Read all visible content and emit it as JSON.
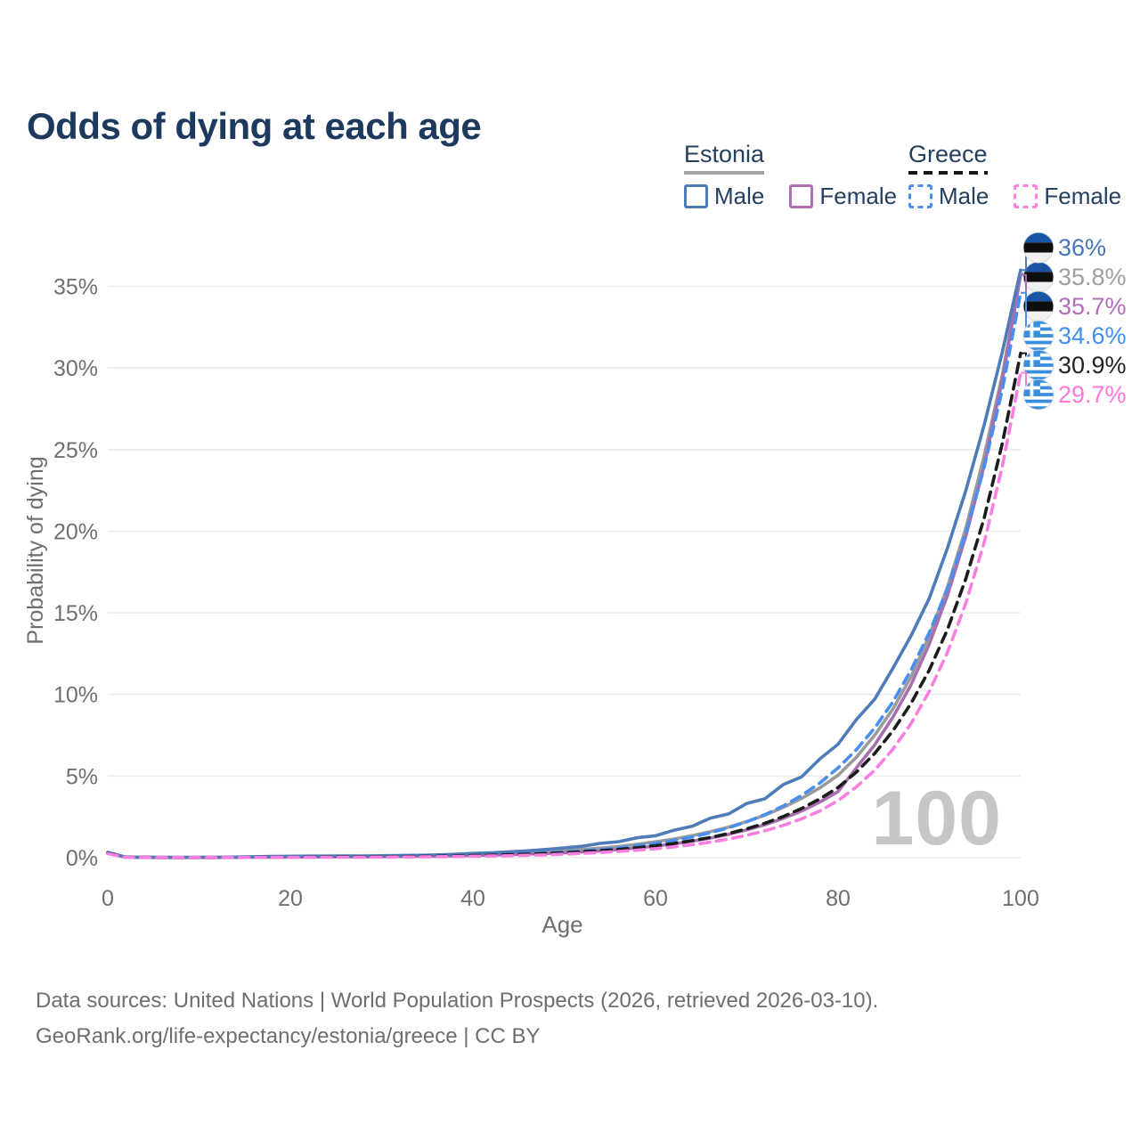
{
  "page": {
    "title": "Odds of dying at each age"
  },
  "legend": {
    "groups": [
      {
        "id": "estonia",
        "label": "Estonia",
        "line_style": "solid",
        "line_color": "#a3a3a3",
        "items": [
          {
            "label": "Male",
            "color": "#4d7cb8",
            "dash": false
          },
          {
            "label": "Female",
            "color": "#b06fb3",
            "dash": false
          }
        ]
      },
      {
        "id": "greece",
        "label": "Greece",
        "line_style": "dashed",
        "line_color": "#161616",
        "items": [
          {
            "label": "Male",
            "color": "#4a8ff0",
            "dash": true
          },
          {
            "label": "Female",
            "color": "#ff80df",
            "dash": true
          }
        ]
      }
    ]
  },
  "footer": {
    "line1": "Data sources: United Nations | World Population Prospects (2026, retrieved 2026-03-10).",
    "line2": "GeoRank.org/life-expectancy/estonia/greece | CC BY"
  },
  "colors": {
    "title": "#1d3a5e",
    "axis_text": "#6f6f6f",
    "grid": "#ebebeb",
    "watermark": "#c6c6c6"
  },
  "chart_data": {
    "type": "line",
    "title": "Odds of dying at each age",
    "xlabel": "Age",
    "ylabel": "Probability of dying",
    "x_ticks": [
      0,
      20,
      40,
      60,
      80,
      100
    ],
    "y_tick_values": [
      0,
      5,
      10,
      15,
      20,
      25,
      30,
      35
    ],
    "y_tick_labels": [
      "0%",
      "5%",
      "10%",
      "15%",
      "20%",
      "25%",
      "30%",
      "35%"
    ],
    "xlim": [
      0,
      100
    ],
    "ylim": [
      0,
      37
    ],
    "grid": "horizontal",
    "legend_position": "top-right",
    "age_counter": "100",
    "ages_start": 0,
    "ages_step": 2,
    "series": [
      {
        "id": "estonia-both",
        "country": "Estonia",
        "sex": "Both",
        "color": "#9a9a9a",
        "dash": false,
        "flag": "estonia",
        "end_label": "35.8%",
        "label_color": "#9e9e9e",
        "label_row": 1,
        "values": [
          0.31,
          0.025,
          0.02,
          0.015,
          0.015,
          0.015,
          0.02,
          0.025,
          0.04,
          0.06,
          0.07,
          0.075,
          0.08,
          0.08,
          0.085,
          0.09,
          0.1,
          0.11,
          0.13,
          0.15,
          0.18,
          0.21,
          0.25,
          0.3,
          0.35,
          0.42,
          0.5,
          0.59,
          0.69,
          0.82,
          0.97,
          1.14,
          1.35,
          1.59,
          1.87,
          2.21,
          2.61,
          3.08,
          3.63,
          4.28,
          5.05,
          6.15,
          7.5,
          9.1,
          11.1,
          13.6,
          16.6,
          20.2,
          24.6,
          29.6,
          35.8
        ]
      },
      {
        "id": "estonia-female",
        "country": "Estonia",
        "sex": "Female",
        "color": "#a86fb0",
        "dash": false,
        "flag": "estonia",
        "end_label": "35.7%",
        "label_color": "#b36cb8",
        "label_row": 2,
        "values": [
          0.3,
          0.02,
          0.015,
          0.01,
          0.01,
          0.01,
          0.015,
          0.02,
          0.025,
          0.03,
          0.035,
          0.04,
          0.045,
          0.05,
          0.055,
          0.06,
          0.07,
          0.08,
          0.09,
          0.11,
          0.13,
          0.155,
          0.185,
          0.22,
          0.26,
          0.3,
          0.36,
          0.42,
          0.5,
          0.6,
          0.71,
          0.85,
          1.01,
          1.2,
          1.43,
          1.7,
          2.02,
          2.41,
          2.86,
          3.41,
          4.05,
          5.5,
          6.9,
          8.6,
          10.6,
          13.1,
          16.1,
          19.7,
          24.0,
          29.3,
          35.7
        ]
      },
      {
        "id": "estonia-male",
        "country": "Estonia",
        "sex": "Male",
        "color": "#4d7cb8",
        "dash": false,
        "flag": "estonia",
        "end_label": "36%",
        "label_color": "#4677b8",
        "label_row": 0,
        "values": [
          0.33,
          0.03,
          0.02,
          0.02,
          0.02,
          0.02,
          0.03,
          0.04,
          0.06,
          0.08,
          0.09,
          0.1,
          0.1,
          0.11,
          0.11,
          0.12,
          0.13,
          0.15,
          0.17,
          0.21,
          0.26,
          0.3,
          0.36,
          0.42,
          0.5,
          0.6,
          0.7,
          0.88,
          0.98,
          1.22,
          1.34,
          1.68,
          1.92,
          2.42,
          2.68,
          3.32,
          3.62,
          4.48,
          4.95,
          6.05,
          6.95,
          8.45,
          9.7,
          11.6,
          13.6,
          15.9,
          19.0,
          22.5,
          26.5,
          31.0,
          36.0
        ]
      },
      {
        "id": "greece-male",
        "country": "Greece",
        "sex": "Male",
        "color": "#4a8ff0",
        "dash": true,
        "flag": "greece",
        "end_label": "34.6%",
        "label_color": "#4190f0",
        "label_row": 3,
        "values": [
          0.3,
          0.02,
          0.015,
          0.01,
          0.01,
          0.01,
          0.01,
          0.02,
          0.03,
          0.05,
          0.06,
          0.06,
          0.07,
          0.07,
          0.08,
          0.08,
          0.09,
          0.1,
          0.11,
          0.12,
          0.14,
          0.17,
          0.2,
          0.24,
          0.29,
          0.35,
          0.42,
          0.5,
          0.6,
          0.73,
          0.88,
          1.05,
          1.26,
          1.52,
          1.83,
          2.2,
          2.64,
          3.17,
          3.81,
          4.58,
          5.5,
          6.61,
          7.94,
          9.54,
          11.5,
          13.8,
          16.5,
          19.9,
          23.9,
          28.7,
          34.6
        ]
      },
      {
        "id": "greece-both",
        "country": "Greece",
        "sex": "Both",
        "color": "#1c1c1c",
        "dash": true,
        "flag": "greece",
        "end_label": "30.9%",
        "label_color": "#222222",
        "label_row": 4,
        "values": [
          0.28,
          0.02,
          0.015,
          0.01,
          0.01,
          0.01,
          0.01,
          0.015,
          0.025,
          0.035,
          0.04,
          0.045,
          0.05,
          0.055,
          0.06,
          0.065,
          0.07,
          0.08,
          0.095,
          0.11,
          0.13,
          0.155,
          0.185,
          0.215,
          0.255,
          0.3,
          0.36,
          0.43,
          0.51,
          0.61,
          0.73,
          0.87,
          1.04,
          1.24,
          1.48,
          1.77,
          2.11,
          2.52,
          3.01,
          3.6,
          4.3,
          5.24,
          6.38,
          7.77,
          9.46,
          11.5,
          14.0,
          17.1,
          20.8,
          25.4,
          30.9
        ]
      },
      {
        "id": "greece-female",
        "country": "Greece",
        "sex": "Female",
        "color": "#f87fe0",
        "dash": true,
        "flag": "greece",
        "end_label": "29.7%",
        "label_color": "#ff78d8",
        "label_row": 5,
        "values": [
          0.25,
          0.015,
          0.01,
          0.01,
          0.01,
          0.01,
          0.01,
          0.012,
          0.015,
          0.02,
          0.022,
          0.025,
          0.028,
          0.03,
          0.035,
          0.04,
          0.045,
          0.05,
          0.06,
          0.07,
          0.09,
          0.105,
          0.12,
          0.145,
          0.17,
          0.22,
          0.265,
          0.32,
          0.38,
          0.46,
          0.55,
          0.66,
          0.79,
          0.95,
          1.14,
          1.37,
          1.65,
          1.98,
          2.38,
          2.86,
          3.5,
          4.33,
          5.36,
          6.64,
          8.22,
          10.2,
          12.6,
          15.6,
          19.3,
          24.0,
          29.7
        ]
      }
    ]
  }
}
